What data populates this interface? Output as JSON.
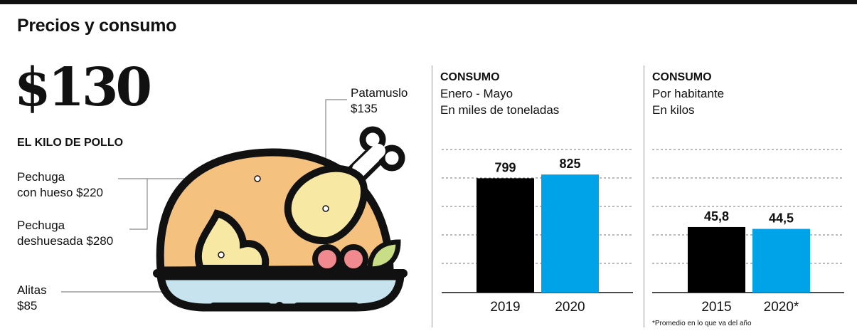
{
  "title": "Precios y consumo",
  "highlight": {
    "value": "$130",
    "label": "EL KILO DE POLLO"
  },
  "cuts": [
    {
      "name": "Pechuga con hueso",
      "price": "$220",
      "line1": "Pechuga",
      "line2": "con hueso $220"
    },
    {
      "name": "Pechuga deshuesada",
      "price": "$280",
      "line1": "Pechuga",
      "line2": "deshuesada $280"
    },
    {
      "name": "Alitas",
      "price": "$85",
      "line1": "Alitas",
      "line2": "$85"
    },
    {
      "name": "Patamuslo",
      "price": "$135",
      "line1": "Patamuslo",
      "line2": "$135"
    }
  ],
  "colors": {
    "series_a": "#000000",
    "series_b": "#00a3e8",
    "body": "#f5c17f",
    "leg": "#f7e8a4",
    "plate": "#c7e3ee",
    "berry": "#f08a8e",
    "leaf": "#c9dc86"
  },
  "chart_data": [
    {
      "type": "bar",
      "heading": "CONSUMO",
      "subtitle_1": "Enero - Mayo",
      "subtitle_2": "En miles de toneladas",
      "categories": [
        "2019",
        "2020"
      ],
      "values": [
        799,
        825
      ],
      "value_labels": [
        "799",
        "825"
      ],
      "ylim": [
        0,
        1000
      ],
      "grid": true,
      "footnote": ""
    },
    {
      "type": "bar",
      "heading": "CONSUMO",
      "subtitle_1": "Por habitante",
      "subtitle_2": "En kilos",
      "categories": [
        "2015",
        "2020*"
      ],
      "values": [
        45.8,
        44.5
      ],
      "value_labels": [
        "45,8",
        "44,5"
      ],
      "ylim": [
        0,
        100
      ],
      "grid": true,
      "footnote": "*Promedio en lo que va del año"
    }
  ]
}
